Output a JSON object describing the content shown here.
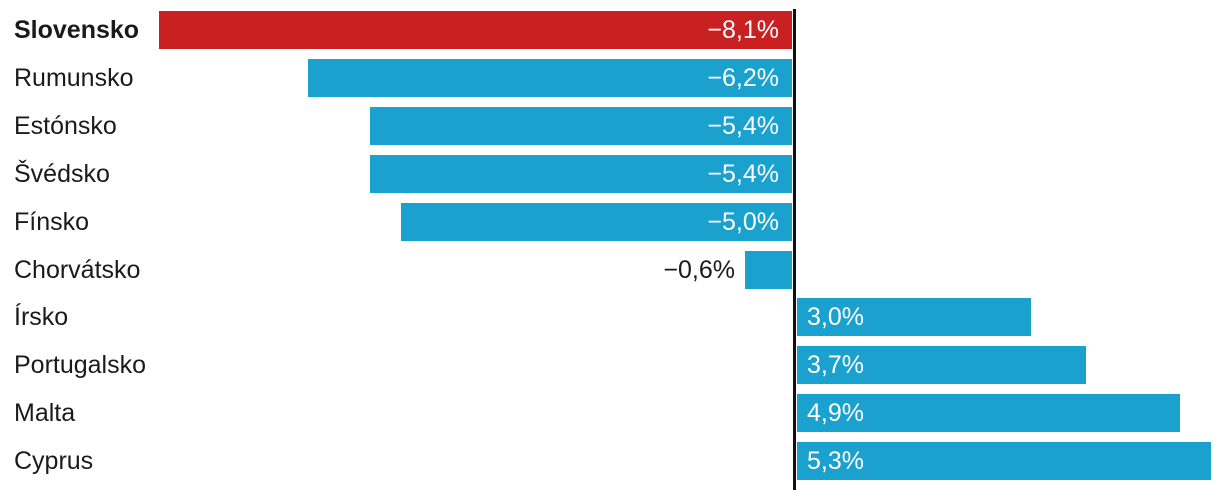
{
  "chart_data": {
    "type": "bar",
    "orientation": "horizontal",
    "title": "",
    "xlabel": "",
    "ylabel": "",
    "grid": false,
    "legend": false,
    "xlim": [
      -8.5,
      5.5
    ],
    "categories": [
      "Slovensko",
      "Rumunsko",
      "Estónsko",
      "Švédsko",
      "Fínsko",
      "Chorvátsko",
      "Írsko",
      "Portugalsko",
      "Malta",
      "Cyprus"
    ],
    "values": [
      -8.1,
      -6.2,
      -5.4,
      -5.4,
      -5.0,
      -0.6,
      3.0,
      3.7,
      4.9,
      5.3
    ],
    "value_labels": [
      "−8,1%",
      "−6,2%",
      "−5,4%",
      "−5,4%",
      "−5,0%",
      "−0,6%",
      "3,0%",
      "3,7%",
      "4,9%",
      "5,3%"
    ],
    "highlight_category": "Slovensko",
    "highlight_index": 0,
    "colors": {
      "bar": "#1aa1ce",
      "highlight": "#c92121",
      "axis": "#111111",
      "category_label": "#1a1a1a",
      "value_inside": "#ffffff",
      "value_outside": "#1a1a1a"
    }
  }
}
